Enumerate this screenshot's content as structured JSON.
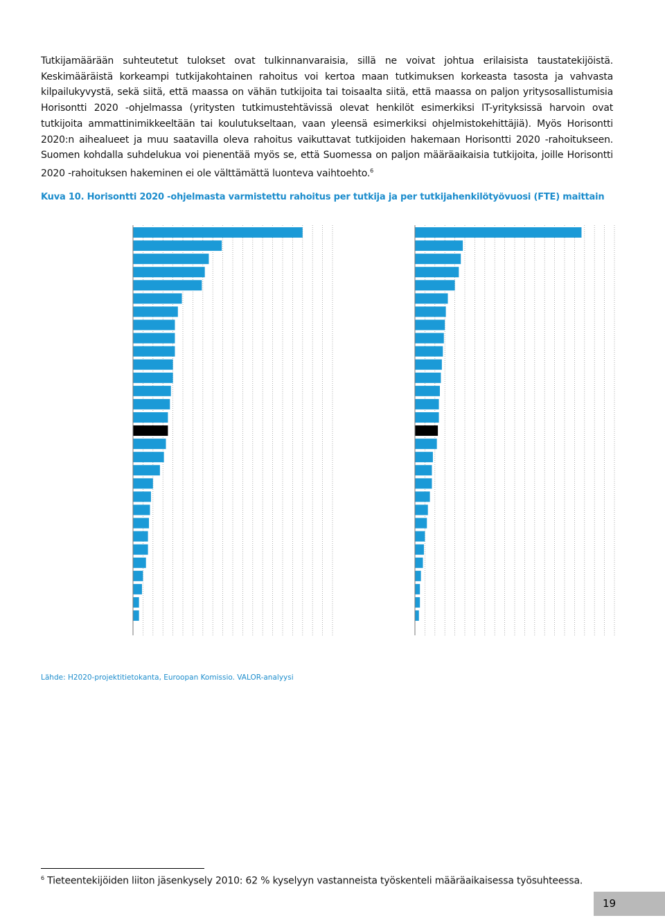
{
  "body": {
    "text": "Tutkijamäärään suhteutetut tulokset ovat tulkinnanvaraisia, sillä ne voivat johtua erilaisista taustatekijöistä. Keskimääräistä korkeampi tutkijakohtainen rahoitus voi kertoa maan tutkimuksen korkeasta tasosta ja vahvasta kilpailukyvystä, sekä siitä, että maassa on vähän tutkijoita tai toisaalta siitä, että maassa on paljon yritysosallistumisia Horisontti 2020 -ohjelmassa (yritysten tutkimustehtävissä olevat henkilöt esimerkiksi IT-yrityksissä harvoin ovat tutkijoita ammattinimikkeeltään tai koulutukseltaan, vaan yleensä esimerkiksi ohjelmistokehittäjiä). Myös Horisontti 2020:n aihealueet ja muu saatavilla oleva rahoitus vaikuttavat tutkijoiden hakemaan Horisontti 2020 -rahoitukseen. Suomen kohdalla suhdelukua voi pienentää myös se, että Suomessa on paljon määräaikaisia tutkijoita, joille Horisontti 2020 -rahoituksen hakeminen ei ole välttämättä luonteva vaihtoehto.",
    "footnote_ref": "6"
  },
  "figure": {
    "caption": "Kuva 10. Horisontti 2020 -ohjelmasta varmistettu rahoitus per tutkija ja per tutkijahenkilötyövuosi (FTE) maittain",
    "source": "Lähde: H2020-projektitietokanta, Euroopan Komissio. VALOR-analyysi"
  },
  "chart_data": [
    {
      "type": "bar",
      "orientation": "horizontal",
      "xlim": [
        0,
        20
      ],
      "grid": true,
      "values": [
        17.0,
        8.9,
        7.6,
        7.2,
        6.9,
        4.9,
        4.5,
        4.2,
        4.2,
        4.2,
        4.0,
        4.0,
        3.8,
        3.7,
        3.5,
        3.5,
        3.3,
        3.1,
        2.7,
        2.0,
        1.8,
        1.7,
        1.6,
        1.5,
        1.5,
        1.3,
        1.0,
        0.9,
        0.6,
        0.6
      ],
      "colors": [
        "#1b9ad7",
        "#1b9ad7",
        "#1b9ad7",
        "#1b9ad7",
        "#1b9ad7",
        "#1b9ad7",
        "#1b9ad7",
        "#1b9ad7",
        "#1b9ad7",
        "#1b9ad7",
        "#1b9ad7",
        "#1b9ad7",
        "#1b9ad7",
        "#1b9ad7",
        "#1b9ad7",
        "#000000",
        "#1b9ad7",
        "#1b9ad7",
        "#1b9ad7",
        "#1b9ad7",
        "#1b9ad7",
        "#1b9ad7",
        "#1b9ad7",
        "#1b9ad7",
        "#1b9ad7",
        "#1b9ad7",
        "#1b9ad7",
        "#1b9ad7",
        "#1b9ad7",
        "#1b9ad7"
      ]
    },
    {
      "type": "bar",
      "orientation": "horizontal",
      "xlim": [
        0,
        20
      ],
      "grid": true,
      "values": [
        16.7,
        4.8,
        4.6,
        4.4,
        4.0,
        3.3,
        3.1,
        3.0,
        2.9,
        2.8,
        2.7,
        2.6,
        2.5,
        2.4,
        2.4,
        2.3,
        2.2,
        1.8,
        1.7,
        1.7,
        1.5,
        1.3,
        1.2,
        1.0,
        0.9,
        0.8,
        0.6,
        0.5,
        0.5,
        0.4
      ],
      "colors": [
        "#1b9ad7",
        "#1b9ad7",
        "#1b9ad7",
        "#1b9ad7",
        "#1b9ad7",
        "#1b9ad7",
        "#1b9ad7",
        "#1b9ad7",
        "#1b9ad7",
        "#1b9ad7",
        "#1b9ad7",
        "#1b9ad7",
        "#1b9ad7",
        "#1b9ad7",
        "#1b9ad7",
        "#000000",
        "#1b9ad7",
        "#1b9ad7",
        "#1b9ad7",
        "#1b9ad7",
        "#1b9ad7",
        "#1b9ad7",
        "#1b9ad7",
        "#1b9ad7",
        "#1b9ad7",
        "#1b9ad7",
        "#1b9ad7",
        "#1b9ad7",
        "#1b9ad7",
        "#1b9ad7"
      ]
    }
  ],
  "footnote": {
    "marker": "6",
    "text": "Tieteentekijöiden liiton jäsenkysely 2010: 62 % kyselyyn vastanneista työskenteli määräaikaisessa työsuhteessa."
  },
  "page_number": "19"
}
